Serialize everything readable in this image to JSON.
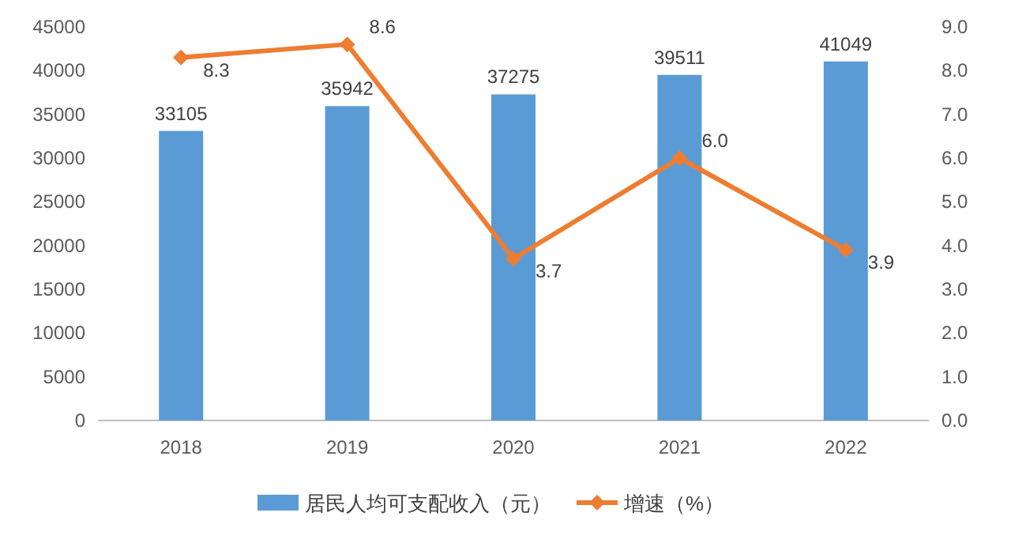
{
  "chart_data": {
    "type": "bar",
    "categories": [
      "2018",
      "2019",
      "2020",
      "2021",
      "2022"
    ],
    "series": [
      {
        "name": "居民人均可支配收入（元）",
        "color": "#5b9bd5",
        "values": [
          33105,
          35942,
          37275,
          39511,
          41049
        ]
      },
      {
        "name": "增速（%）",
        "type": "line",
        "axis": "y2",
        "color": "#ed7d31",
        "values": [
          8.3,
          8.6,
          3.7,
          6.0,
          3.9
        ],
        "value_labels": [
          "8.3",
          "8.6",
          "3.7",
          "6.0",
          "3.9"
        ]
      }
    ],
    "ylim": [
      0,
      45000
    ],
    "yticks": [
      0,
      5000,
      10000,
      15000,
      20000,
      25000,
      30000,
      35000,
      40000,
      45000
    ],
    "y2lim": [
      0,
      9
    ],
    "y2ticks": [
      {
        "value": 0,
        "label": "0.0"
      },
      {
        "value": 1,
        "label": "1.0"
      },
      {
        "value": 2,
        "label": "2.0"
      },
      {
        "value": 3,
        "label": "3.0"
      },
      {
        "value": 4,
        "label": "4.0"
      },
      {
        "value": 5,
        "label": "5.0"
      },
      {
        "value": 6,
        "label": "6.0"
      },
      {
        "value": 7,
        "label": "7.0"
      },
      {
        "value": 8,
        "label": "8.0"
      },
      {
        "value": 9,
        "label": "9.0"
      }
    ],
    "data_labels": true,
    "marker": "diamond",
    "legend": "bottom"
  }
}
